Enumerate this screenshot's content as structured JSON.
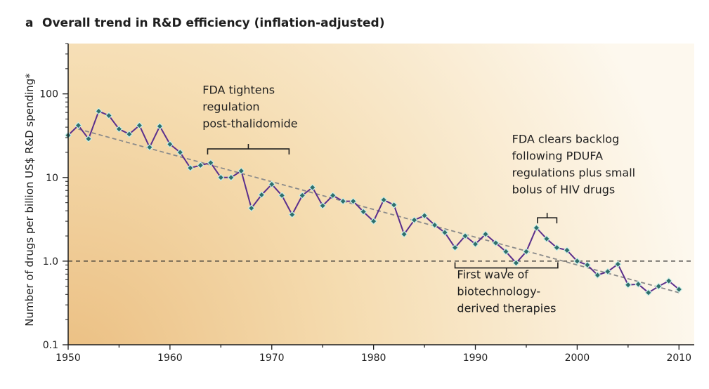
{
  "chart_data": {
    "type": "line",
    "panel_label": "a",
    "title": "Overall trend in R&D efficiency (inflation-adjusted)",
    "xlabel": "",
    "ylabel": "Number of drugs per billion US$ R&D spending*",
    "y_scale": "log",
    "xlim": [
      1950,
      2011.5
    ],
    "ylim": [
      0.1,
      400
    ],
    "x_ticks": [
      1950,
      1960,
      1970,
      1980,
      1990,
      2000,
      2010
    ],
    "x_tick_labels": [
      "1950",
      "1960",
      "1970",
      "1980",
      "1990",
      "2000",
      "2010"
    ],
    "y_ticks": [
      0.1,
      1.0,
      10,
      100
    ],
    "y_tick_labels": [
      "0.1",
      "1.0",
      "10",
      "100"
    ],
    "reference_line_y": 1.0,
    "grid": false,
    "colors": {
      "line": "#5b2f8c",
      "marker_fill": "#2f6e6b",
      "marker_edge": "#c9efe8",
      "trend": "#8a8a8a",
      "background_light": "#fdf8ee",
      "background_dark": "#ebbf82"
    },
    "series": [
      {
        "x": [
          1950,
          1951,
          1952,
          1953,
          1954,
          1955,
          1956,
          1957,
          1958,
          1959,
          1960,
          1961,
          1962,
          1963,
          1964,
          1965,
          1966,
          1967,
          1968,
          1969,
          1970,
          1971,
          1972,
          1973,
          1974,
          1975,
          1976,
          1977,
          1978,
          1979,
          1980,
          1981,
          1982,
          1983,
          1984,
          1985,
          1986,
          1987,
          1988,
          1989,
          1990,
          1991,
          1992,
          1993,
          1994,
          1995,
          1996,
          1997,
          1998,
          1999,
          2000,
          2001,
          2002,
          2003,
          2004,
          2005,
          2006,
          2007,
          2008,
          2009,
          2010
        ],
        "values": [
          32,
          42,
          29,
          62,
          55,
          38,
          33,
          42,
          23,
          41,
          25,
          20,
          13,
          14,
          15,
          10,
          10,
          12,
          4.3,
          6.2,
          8.3,
          6.1,
          3.6,
          6.1,
          7.6,
          4.6,
          6.1,
          5.2,
          5.2,
          3.9,
          3.0,
          5.4,
          4.7,
          2.1,
          3.1,
          3.5,
          2.7,
          2.2,
          1.45,
          2.0,
          1.6,
          2.1,
          1.65,
          1.3,
          0.95,
          1.3,
          2.5,
          1.85,
          1.45,
          1.35,
          1.0,
          0.9,
          0.68,
          0.75,
          0.92,
          0.52,
          0.53,
          0.42,
          0.5,
          0.58,
          0.46
        ]
      }
    ],
    "trend_line": {
      "x": [
        1951,
        2010
      ],
      "y": [
        38,
        0.42
      ]
    },
    "annotations": [
      {
        "lines": [
          "FDA tightens",
          "regulation",
          "post-thalidomide"
        ],
        "bracket": [
          1963.7,
          1971.7
        ],
        "bracket_y": 22,
        "orientation": "up",
        "text_x": 1963.2,
        "text_y": 100
      },
      {
        "lines": [
          "FDA clears backlog",
          "following PDUFA",
          "regulations plus small",
          "bolus of HIV drugs"
        ],
        "bracket": [
          1996.1,
          1998.0
        ],
        "bracket_y": 3.3,
        "orientation": "up",
        "text_x": 1993.6,
        "text_y": 26
      },
      {
        "lines": [
          "First wave of",
          "biotechnology-",
          "derived therapies"
        ],
        "bracket": [
          1988.0,
          1998.1
        ],
        "bracket_y": 0.83,
        "orientation": "down",
        "text_x": 1988.2,
        "text_y": 0.62
      }
    ]
  }
}
